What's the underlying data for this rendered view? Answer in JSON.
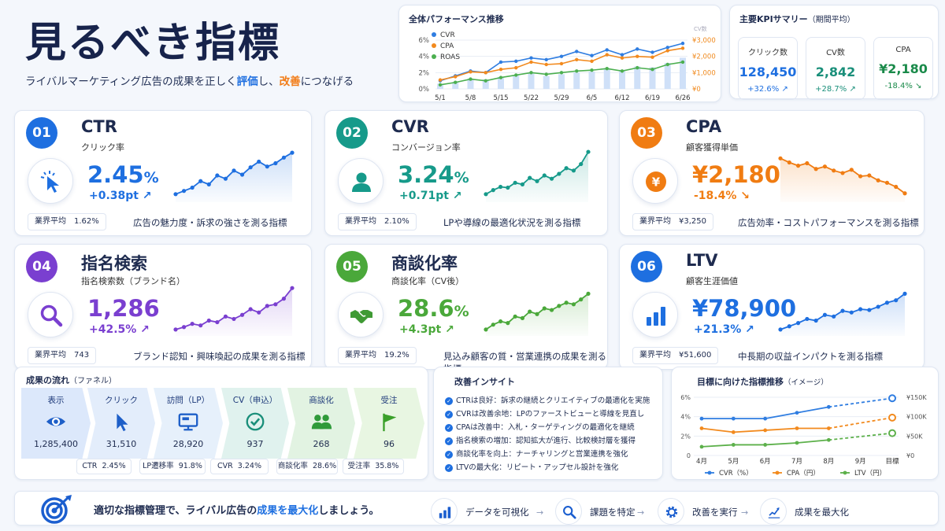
{
  "header": {
    "title": "見るべき指標",
    "subtitle_parts": [
      "ライバルマーケティング広告の成果を正しく",
      "評価",
      "し、",
      "改善",
      "につなげる"
    ]
  },
  "perf_chart": {
    "title": "全体パフォーマンス推移",
    "legend": [
      "CVR",
      "CPA",
      "ROAS"
    ],
    "colors": {
      "CVR": "#2f7de1",
      "CPA": "#f28a1e",
      "ROAS": "#4caf50",
      "bars": "#cfe0f8"
    },
    "x": [
      "5/1",
      "5/8",
      "5/15",
      "5/22",
      "5/29",
      "6/5",
      "6/12",
      "6/19",
      "6/26"
    ],
    "y_left_ticks": [
      "6%",
      "4%",
      "2%",
      "0%"
    ],
    "y_right_ticks": [
      "¥3,000",
      "¥2,000",
      "¥1,000",
      "¥0"
    ],
    "y_right_top_label": "CV数"
  },
  "chart_data": [
    {
      "type": "line",
      "title": "全体パフォーマンス推移",
      "x": [
        "5/1",
        "",
        "5/8",
        "",
        "5/15",
        "",
        "5/22",
        "",
        "5/29",
        "",
        "6/5",
        "",
        "6/12",
        "",
        "6/19",
        "",
        "6/26"
      ],
      "series": [
        {
          "name": "CVR",
          "axis": "left",
          "values": [
            1.0,
            1.6,
            2.2,
            2.0,
            3.3,
            3.4,
            3.8,
            3.6,
            4.0,
            4.6,
            4.1,
            4.8,
            4.2,
            4.9,
            4.5,
            5.1,
            5.6
          ]
        },
        {
          "name": "CPA",
          "axis": "right",
          "values": [
            550,
            750,
            1050,
            1000,
            1200,
            1300,
            1650,
            1500,
            1550,
            1800,
            1700,
            2100,
            1900,
            2000,
            1950,
            2350,
            2500
          ]
        },
        {
          "name": "ROAS",
          "axis": "left",
          "values": [
            0.5,
            0.8,
            1.2,
            1.0,
            1.4,
            1.7,
            2.0,
            1.8,
            2.0,
            2.2,
            2.3,
            2.5,
            2.2,
            2.6,
            2.4,
            3.0,
            3.3
          ]
        }
      ],
      "bars": {
        "name": "CV数",
        "values": [
          30,
          40,
          60,
          55,
          70,
          80,
          90,
          75,
          85,
          95,
          100,
          120,
          110,
          130,
          125,
          150,
          180
        ]
      },
      "ylim_left": [
        0,
        6
      ],
      "ylim_right": [
        0,
        3000
      ]
    },
    {
      "type": "line",
      "title": "目標に向けた指標推移",
      "title_note": "（イメージ）",
      "x": [
        "4月",
        "5月",
        "6月",
        "7月",
        "8月",
        "9月",
        "目標"
      ],
      "series": [
        {
          "name": "CVR（%）",
          "values": [
            3.8,
            3.8,
            3.8,
            4.4,
            5.0,
            null,
            5.9
          ],
          "projected_from": 4
        },
        {
          "name": "CPA（円）",
          "values": [
            2.8,
            2.4,
            2.6,
            2.8,
            2.8,
            null,
            3.9
          ],
          "projected_from": 4
        },
        {
          "name": "LTV（円）",
          "values": [
            0.9,
            1.1,
            1.1,
            1.3,
            1.6,
            null,
            2.3
          ],
          "projected_from": 4
        }
      ],
      "y_left_ticks": [
        "6%",
        "4%",
        "2%",
        "0"
      ],
      "y_right_ticks": [
        "¥150K",
        "¥100K",
        "¥50K",
        "¥0"
      ],
      "ylim": [
        0,
        6
      ]
    }
  ],
  "kpi_summary": {
    "title": "主要KPIサマリー",
    "note": "（期間平均）",
    "items": [
      {
        "label": "クリック数",
        "value": "128,450",
        "delta": "+32.6% ↗",
        "color": "#1e6fe0"
      },
      {
        "label": "CV数",
        "value": "2,842",
        "delta": "+28.7% ↗",
        "color": "#1a8f7a"
      },
      {
        "label": "CPA",
        "value": "¥2,180",
        "delta": "-18.4% ↘",
        "color": "#1a8a4a"
      }
    ]
  },
  "metrics": [
    {
      "num": "01",
      "name": "CTR",
      "sub": "クリック率",
      "value": "2.45",
      "unit": "%",
      "delta": "+0.38pt ↗",
      "avg_label": "業界平均",
      "avg": "1.62%",
      "desc": "広告の魅力度・訴求の強さを測る指標",
      "color": "#1e6fe0",
      "icon": "cursor-click-icon",
      "spark": [
        12,
        20,
        28,
        44,
        36,
        58,
        50,
        70,
        60,
        78,
        92,
        80,
        88,
        102,
        114
      ]
    },
    {
      "num": "02",
      "name": "CVR",
      "sub": "コンバージョン率",
      "value": "3.24",
      "unit": "%",
      "delta": "+0.71pt ↗",
      "avg_label": "業界平均",
      "avg": "2.10%",
      "desc": "LPや導線の最適化状況を測る指標",
      "color": "#169a8a",
      "icon": "user-icon",
      "spark": [
        12,
        22,
        30,
        28,
        40,
        36,
        52,
        44,
        58,
        50,
        62,
        76,
        70,
        86,
        116
      ]
    },
    {
      "num": "03",
      "name": "CPA",
      "sub": "顧客獲得単価",
      "value": "¥2,180",
      "unit": "",
      "delta": "-18.4% ↘",
      "avg_label": "業界平均",
      "avg": "¥3,250",
      "desc": "広告効率・コストパフォーマンスを測る指標",
      "color": "#f07c12",
      "icon": "yen-coin-icon",
      "spark": [
        100,
        90,
        82,
        88,
        74,
        80,
        70,
        64,
        72,
        56,
        58,
        46,
        40,
        30,
        14
      ]
    },
    {
      "num": "04",
      "name": "指名検索",
      "sub": "指名検索数（ブランド名）",
      "value": "1,286",
      "unit": "",
      "delta": "+42.5% ↗",
      "avg_label": "業界平均",
      "avg": "743",
      "desc": "ブランド認知・興味喚起の成果を測る指標",
      "color": "#7a3fd0",
      "icon": "search-icon",
      "spark": [
        8,
        14,
        22,
        18,
        30,
        26,
        40,
        34,
        44,
        58,
        50,
        66,
        70,
        84,
        110
      ]
    },
    {
      "num": "05",
      "name": "商談化率",
      "sub": "商談化率（CV後）",
      "value": "28.6",
      "unit": "%",
      "delta": "+4.3pt ↗",
      "avg_label": "業界平均",
      "avg": "19.2%",
      "desc": "見込み顧客の質・営業連携の成果を測る指標",
      "color": "#4aa83a",
      "icon": "handshake-icon",
      "spark": [
        8,
        20,
        28,
        24,
        40,
        36,
        52,
        46,
        60,
        56,
        66,
        74,
        70,
        82,
        96
      ]
    },
    {
      "num": "06",
      "name": "LTV",
      "sub": "顧客生涯価値",
      "value": "¥78,900",
      "unit": "",
      "delta": "+21.3% ↗",
      "avg_label": "業界平均",
      "avg": "¥51,600",
      "desc": "中長期の収益インパクトを測る指標",
      "color": "#1e6fe0",
      "icon": "bar-chart-icon",
      "spark": [
        8,
        16,
        24,
        34,
        30,
        44,
        40,
        54,
        50,
        58,
        56,
        64,
        74,
        80,
        96
      ]
    }
  ],
  "funnel": {
    "title": "成果の流れ",
    "note": "（ファネル）",
    "steps": [
      {
        "name": "表示",
        "value": "1,285,400",
        "icon": "eye-icon",
        "bg": "#dce8fb",
        "ic": "#1e5fc8"
      },
      {
        "name": "クリック",
        "value": "31,510",
        "icon": "cursor-icon",
        "bg": "#e3edfb",
        "ic": "#1e5fc8"
      },
      {
        "name": "訪問（LP）",
        "value": "28,920",
        "icon": "monitor-icon",
        "bg": "#e6f0fb",
        "ic": "#1e5fc8"
      },
      {
        "name": "CV（申込）",
        "value": "937",
        "icon": "check-circle-icon",
        "bg": "#e0f2ee",
        "ic": "#1a8f7a"
      },
      {
        "name": "商談化",
        "value": "268",
        "icon": "people-icon",
        "bg": "#e2f3e2",
        "ic": "#2f9a3a"
      },
      {
        "name": "受注",
        "value": "96",
        "icon": "flag-icon",
        "bg": "#e8f6e2",
        "ic": "#3aa02a"
      }
    ],
    "rates": [
      {
        "label": "CTR",
        "value": "2.45%"
      },
      {
        "label": "LP遷移率",
        "value": "91.8%"
      },
      {
        "label": "CVR",
        "value": "3.24%"
      },
      {
        "label": "商談化率",
        "value": "28.6%"
      },
      {
        "label": "受注率",
        "value": "35.8%"
      }
    ]
  },
  "insights": {
    "title": "改善インサイト",
    "items": [
      "CTRは良好：訴求の継続とクリエイティブの最適化を実施",
      "CVRは改善余地：LPのファーストビューと導線を見直し",
      "CPAは改善中：入札・ターゲティングの最適化を継続",
      "指名検索の増加：認知拡大が進行、比較検討層を獲得",
      "商談化率を向上：ナーチャリングと営業連携を強化",
      "LTVの最大化：リピート・アップセル設計を強化"
    ]
  },
  "target_chart": {
    "title": "目標に向けた指標推移",
    "note": "（イメージ）",
    "x": [
      "4月",
      "5月",
      "6月",
      "7月",
      "8月",
      "9月",
      "目標"
    ],
    "y_left_ticks": [
      "6%",
      "4%",
      "2%",
      "0"
    ],
    "y_right_ticks": [
      "¥150K",
      "¥100K",
      "¥50K",
      "¥0"
    ],
    "legend": [
      "CVR（%）",
      "CPA（円）",
      "LTV（円）"
    ],
    "colors": [
      "#2f7de1",
      "#f28a1e",
      "#5cb04a"
    ]
  },
  "footer": {
    "message_parts": [
      "適切な指標管理で、ライバル広告の",
      "成果を最大化",
      "しましょう。"
    ],
    "steps": [
      "データを可視化",
      "課題を特定",
      "改善を実行",
      "成果を最大化"
    ],
    "arrow": "→"
  }
}
